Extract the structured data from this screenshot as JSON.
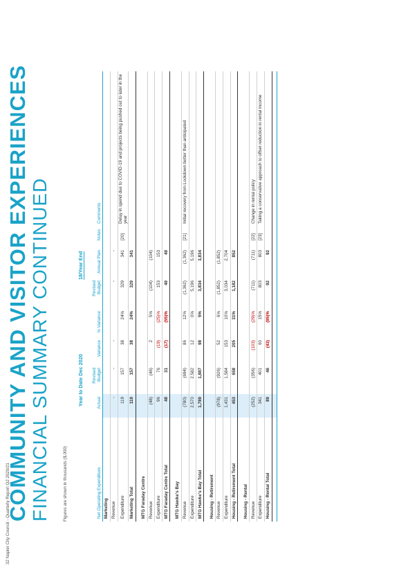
{
  "title_bold": "COMMUNITY AND VISITOR EXPERIENCES",
  "title_light": "FINANCIAL SUMMARY CONTINUED",
  "figures_note": "Figures are shown in thousands ($,000)",
  "group_ytd": "Year to Date Dec 2020",
  "group_ye": "18/Year End",
  "headers": [
    "Net Operating Expenditure",
    "Actual",
    "Revised Budget",
    "Variance",
    "% Variance",
    "Revised Budget",
    "Annual Plan",
    "Notes",
    "Comments"
  ],
  "rows": [
    {
      "type": "sec",
      "cells": [
        "Marketing",
        "",
        "",
        "",
        "",
        "",
        "",
        "",
        ""
      ]
    },
    {
      "type": "row",
      "cells": [
        "Revenue",
        "-",
        "-",
        "-",
        "",
        "-",
        "-",
        "",
        ""
      ]
    },
    {
      "type": "row",
      "cells": [
        "Expenditure",
        "119",
        "157",
        "38",
        "24%",
        "329",
        "341",
        "[20]",
        "Delay in spend due to COVID-19 and projects being pushed out to later in the year"
      ]
    },
    {
      "type": "tot",
      "cells": [
        "Marketing Total",
        "119",
        "157",
        "38",
        "24%",
        "329",
        "341",
        "",
        ""
      ]
    },
    {
      "type": "sp",
      "cells": [
        "",
        "",
        "",
        "",
        "",
        "",
        "",
        "",
        ""
      ]
    },
    {
      "type": "sec",
      "cells": [
        "MTG Faraday Centre",
        "",
        "",
        "",
        "",
        "",
        "",
        "",
        ""
      ]
    },
    {
      "type": "row",
      "cells": [
        "Revenue",
        "(48)",
        "(46)",
        "2",
        "5%",
        "(104)",
        "(104)",
        "",
        ""
      ]
    },
    {
      "type": "row",
      "cells": [
        "Expenditure",
        "96",
        "76",
        "(19)",
        "(25)%",
        "153",
        "153",
        "",
        ""
      ]
    },
    {
      "type": "tot",
      "cells": [
        "MTG Faraday Centre Total",
        "48",
        "31",
        "(17)",
        "(55)%",
        "49",
        "49",
        "",
        ""
      ]
    },
    {
      "type": "sp",
      "cells": [
        "",
        "",
        "",
        "",
        "",
        "",
        "",
        "",
        ""
      ]
    },
    {
      "type": "sec",
      "cells": [
        "MTG Hawke's Bay",
        "",
        "",
        "",
        "",
        "",
        "",
        "",
        ""
      ]
    },
    {
      "type": "row",
      "cells": [
        "Revenue",
        "(780)",
        "(694)",
        "86",
        "12%",
        "(1,362)",
        "(1,362)",
        "[21]",
        "Initial recovery from Lockdown better than anticipated"
      ]
    },
    {
      "type": "row",
      "cells": [
        "Expenditure",
        "2,570",
        "2,582",
        "12",
        "0%",
        "5,196",
        "5,196",
        "",
        ""
      ]
    },
    {
      "type": "tot",
      "cells": [
        "MTG Hawke's Bay Total",
        "1,789",
        "1,887",
        "98",
        "5%",
        "3,834",
        "3,834",
        "",
        ""
      ]
    },
    {
      "type": "sp",
      "cells": [
        "",
        "",
        "",
        "",
        "",
        "",
        "",
        "",
        ""
      ]
    },
    {
      "type": "sec",
      "cells": [
        "Housing - Retirement",
        "",
        "",
        "",
        "",
        "",
        "",
        "",
        ""
      ]
    },
    {
      "type": "row",
      "cells": [
        "Revenue",
        "(978)",
        "(926)",
        "52",
        "6%",
        "(1,852)",
        "(1,852)",
        "",
        ""
      ]
    },
    {
      "type": "row",
      "cells": [
        "Expenditure",
        "1,431",
        "1,584",
        "153",
        "10%",
        "3,034",
        "2,704",
        "",
        ""
      ]
    },
    {
      "type": "tot",
      "cells": [
        "Housing - Retirement Total",
        "453",
        "658",
        "205",
        "31%",
        "1,182",
        "852",
        "",
        ""
      ]
    },
    {
      "type": "sp",
      "cells": [
        "",
        "",
        "",
        "",
        "",
        "",
        "",
        "",
        ""
      ]
    },
    {
      "type": "sec",
      "cells": [
        "Housing - Rental",
        "",
        "",
        "",
        "",
        "",
        "",
        "",
        ""
      ]
    },
    {
      "type": "row",
      "cells": [
        "Revenue",
        "(252)",
        "(356)",
        "(103)",
        "(29)%",
        "(711)",
        "(711)",
        "[22]",
        "Change in rental policy"
      ]
    },
    {
      "type": "row",
      "cells": [
        "Expenditure",
        "341",
        "401",
        "60",
        "15%",
        "803",
        "803",
        "[23]",
        "Taking a conservative approach to offset reduction in rental income"
      ]
    },
    {
      "type": "tot",
      "cells": [
        "Housing - Rental Total",
        "89",
        "46",
        "(43)",
        "(95)%",
        "92",
        "92",
        "",
        ""
      ]
    },
    {
      "type": "sp",
      "cells": [
        "",
        "",
        "",
        "",
        "",
        "",
        "",
        "",
        ""
      ]
    }
  ],
  "footer": "32 Napier City Council - Quarterly Report Q2 2020/21"
}
